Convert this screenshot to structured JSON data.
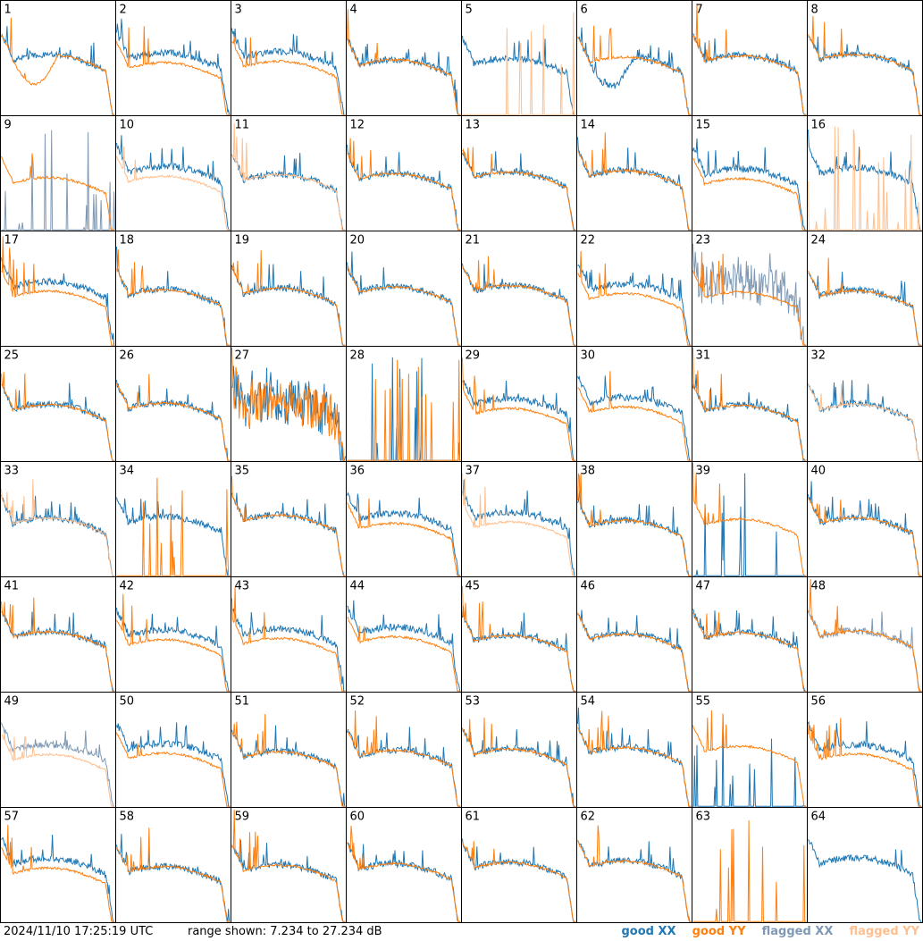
{
  "timestamp": "2024/11/10 17:25:19 UTC",
  "range_text": "range shown: 7.234 to 27.234 dB",
  "legend": {
    "good_xx": "good XX",
    "good_yy": "good YY",
    "flagged_xx": "flagged XX",
    "flagged_yy": "flagged YY"
  },
  "colors": {
    "good_xx": "#1f77b4",
    "good_yy": "#ff7f0e",
    "flagged_xx": "#7f99b4",
    "flagged_yy": "#ffbf8e"
  },
  "chart_data": {
    "type": "line",
    "panel_grid": "8x8",
    "ylim": [
      7.234,
      27.234
    ],
    "panels": [
      {
        "id": 1,
        "xx": "good",
        "yy": "good",
        "note": "YY dips low mid-band then rolls off"
      },
      {
        "id": 2,
        "xx": "good",
        "yy": "good"
      },
      {
        "id": 3,
        "xx": "good",
        "yy": "good"
      },
      {
        "id": 4,
        "xx": "good",
        "yy": "good"
      },
      {
        "id": 5,
        "xx": "good",
        "yy": "flagged",
        "note": "YY near-flat with spikes"
      },
      {
        "id": 6,
        "xx": "good",
        "yy": "good",
        "note": "XX dips low mid-band"
      },
      {
        "id": 7,
        "xx": "good",
        "yy": "good"
      },
      {
        "id": 8,
        "xx": "good",
        "yy": "good"
      },
      {
        "id": 9,
        "xx": "flagged",
        "yy": "good",
        "note": "XX near-flat with spikes"
      },
      {
        "id": 10,
        "xx": "good",
        "yy": "flagged"
      },
      {
        "id": 11,
        "xx": "good",
        "yy": "flagged"
      },
      {
        "id": 12,
        "xx": "good",
        "yy": "good"
      },
      {
        "id": 13,
        "xx": "good",
        "yy": "good"
      },
      {
        "id": 14,
        "xx": "good",
        "yy": "good"
      },
      {
        "id": 15,
        "xx": "good",
        "yy": "good"
      },
      {
        "id": 16,
        "xx": "good",
        "yy": "flagged",
        "note": "YY near-flat with spikes"
      },
      {
        "id": 17,
        "xx": "good",
        "yy": "good"
      },
      {
        "id": 18,
        "xx": "good",
        "yy": "good"
      },
      {
        "id": 19,
        "xx": "good",
        "yy": "good"
      },
      {
        "id": 20,
        "xx": "good",
        "yy": "good"
      },
      {
        "id": 21,
        "xx": "good",
        "yy": "good"
      },
      {
        "id": 22,
        "xx": "good",
        "yy": "good"
      },
      {
        "id": 23,
        "xx": "flagged",
        "yy": "good",
        "note": "XX noisy"
      },
      {
        "id": 24,
        "xx": "good",
        "yy": "good"
      },
      {
        "id": 25,
        "xx": "good",
        "yy": "good"
      },
      {
        "id": 26,
        "xx": "good",
        "yy": "good"
      },
      {
        "id": 27,
        "xx": "good",
        "yy": "good",
        "note": "both noisy"
      },
      {
        "id": 28,
        "xx": "good",
        "yy": "good",
        "note": "both near-flat with spikes"
      },
      {
        "id": 29,
        "xx": "good",
        "yy": "good"
      },
      {
        "id": 30,
        "xx": "good",
        "yy": "good"
      },
      {
        "id": 31,
        "xx": "good",
        "yy": "good"
      },
      {
        "id": 32,
        "xx": "good",
        "yy": "flagged"
      },
      {
        "id": 33,
        "xx": "good",
        "yy": "flagged"
      },
      {
        "id": 34,
        "xx": "good",
        "yy": "good",
        "note": "YY near-flat with spikes"
      },
      {
        "id": 35,
        "xx": "good",
        "yy": "good"
      },
      {
        "id": 36,
        "xx": "good",
        "yy": "good"
      },
      {
        "id": 37,
        "xx": "good",
        "yy": "flagged"
      },
      {
        "id": 38,
        "xx": "good",
        "yy": "good"
      },
      {
        "id": 39,
        "xx": "good",
        "yy": "good",
        "note": "XX near-flat with spikes"
      },
      {
        "id": 40,
        "xx": "good",
        "yy": "good"
      },
      {
        "id": 41,
        "xx": "good",
        "yy": "good"
      },
      {
        "id": 42,
        "xx": "good",
        "yy": "good"
      },
      {
        "id": 43,
        "xx": "good",
        "yy": "good"
      },
      {
        "id": 44,
        "xx": "good",
        "yy": "good"
      },
      {
        "id": 45,
        "xx": "good",
        "yy": "good"
      },
      {
        "id": 46,
        "xx": "good",
        "yy": "good"
      },
      {
        "id": 47,
        "xx": "good",
        "yy": "good"
      },
      {
        "id": 48,
        "xx": "flagged",
        "yy": "good"
      },
      {
        "id": 49,
        "xx": "flagged",
        "yy": "flagged"
      },
      {
        "id": 50,
        "xx": "good",
        "yy": "good"
      },
      {
        "id": 51,
        "xx": "good",
        "yy": "good"
      },
      {
        "id": 52,
        "xx": "good",
        "yy": "good"
      },
      {
        "id": 53,
        "xx": "good",
        "yy": "good"
      },
      {
        "id": 54,
        "xx": "good",
        "yy": "good"
      },
      {
        "id": 55,
        "xx": "good",
        "yy": "good",
        "note": "XX near-flat with spikes"
      },
      {
        "id": 56,
        "xx": "good",
        "yy": "good"
      },
      {
        "id": 57,
        "xx": "good",
        "yy": "good"
      },
      {
        "id": 58,
        "xx": "good",
        "yy": "good"
      },
      {
        "id": 59,
        "xx": "good",
        "yy": "good"
      },
      {
        "id": 60,
        "xx": "good",
        "yy": "good"
      },
      {
        "id": 61,
        "xx": "good",
        "yy": "good"
      },
      {
        "id": 62,
        "xx": "good",
        "yy": "good"
      },
      {
        "id": 63,
        "xx": "none",
        "yy": "good",
        "note": "YY near-flat with spikes"
      },
      {
        "id": 64,
        "xx": "good",
        "yy": "none"
      }
    ]
  }
}
